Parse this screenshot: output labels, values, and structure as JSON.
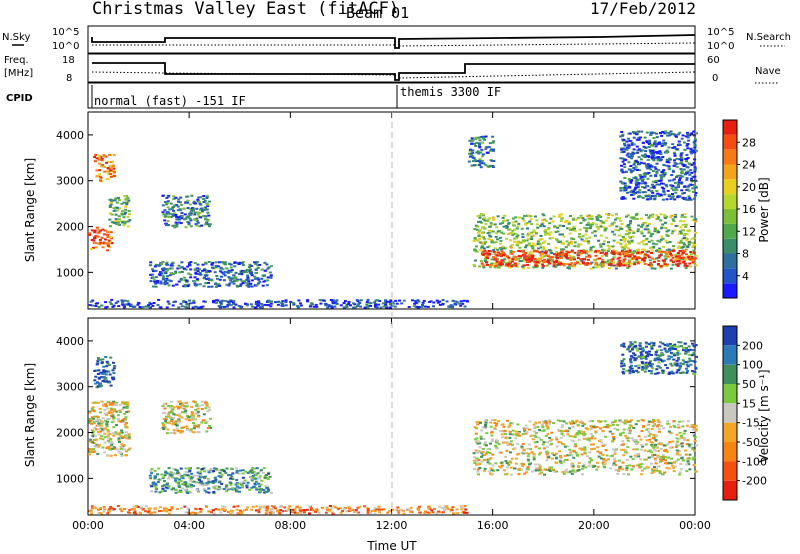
{
  "header": {
    "title": "Christmas Valley East (fitACF)",
    "beam": "Beam 01",
    "date": "17/Feb/2012"
  },
  "status_panel": {
    "nsky_label": "N.Sky",
    "nsky_tick_top": "10^5",
    "nsky_tick_bottom": "10^0",
    "nsearch_label": "N.Search",
    "nsearch_tick_top": "10^5",
    "nsearch_tick_bottom": "10^0",
    "freq_label_1": "Freq.",
    "freq_label_2": "[MHz]",
    "freq_tick_top": "18",
    "freq_tick_bottom": "8",
    "nave_label": "Nave",
    "nave_tick_top": "60",
    "nave_tick_bottom": "0",
    "cpid_label": "CPID",
    "cpid_1": "normal (fast) -151 IF",
    "cpid_2": "themis 3300 IF"
  },
  "chart_data": [
    {
      "type": "heatmap",
      "name": "power",
      "ylabel": "Slant Range [km]",
      "xlabel": "",
      "x_range_hours": [
        0,
        24
      ],
      "ylim": [
        200,
        4500
      ],
      "yticks": [
        "1000",
        "2000",
        "3000",
        "4000"
      ],
      "colorbar_label": "Power [dB]",
      "colorbar_ticks": [
        "4",
        "8",
        "12",
        "16",
        "20",
        "24",
        "28"
      ],
      "colorbar_colors": [
        "#1a1aff",
        "#2155c8",
        "#2f6fa0",
        "#3b8c6a",
        "#4fa84a",
        "#7cc03a",
        "#b6d630",
        "#e8d020",
        "#f3a41a",
        "#f77a16",
        "#f54c12",
        "#e81e10"
      ],
      "regions": [
        {
          "t": [
            0.0,
            0.9
          ],
          "r": [
            1500,
            2000
          ],
          "level": 0.85
        },
        {
          "t": [
            0.2,
            1.0
          ],
          "r": [
            3000,
            3600
          ],
          "level": 0.75
        },
        {
          "t": [
            0.8,
            1.6
          ],
          "r": [
            2000,
            2700
          ],
          "level": 0.4
        },
        {
          "t": [
            2.9,
            4.8
          ],
          "r": [
            2000,
            2700
          ],
          "level": 0.25
        },
        {
          "t": [
            2.4,
            7.2
          ],
          "r": [
            700,
            1250
          ],
          "level": 0.2
        },
        {
          "t": [
            0.0,
            15.0
          ],
          "r": [
            250,
            420
          ],
          "level": 0.1
        },
        {
          "t": [
            15.2,
            24.0
          ],
          "r": [
            1100,
            2300
          ],
          "level": 0.45
        },
        {
          "t": [
            15.5,
            24.0
          ],
          "r": [
            1150,
            1500
          ],
          "level": 0.95
        },
        {
          "t": [
            15.0,
            16.0
          ],
          "r": [
            3300,
            4000
          ],
          "level": 0.25
        },
        {
          "t": [
            21.0,
            24.0
          ],
          "r": [
            2600,
            4100
          ],
          "level": 0.15
        }
      ]
    },
    {
      "type": "heatmap",
      "name": "velocity",
      "ylabel": "Slant Range [km]",
      "xlabel": "Time UT",
      "x_range_hours": [
        0,
        24
      ],
      "xticks": [
        "00:00",
        "04:00",
        "08:00",
        "12:00",
        "16:00",
        "20:00",
        "00:00"
      ],
      "ylim": [
        200,
        4500
      ],
      "yticks": [
        "1000",
        "2000",
        "3000",
        "4000"
      ],
      "colorbar_label": "Velocity [m s⁻¹]",
      "colorbar_ticks": [
        "200",
        "100",
        "50",
        "15",
        "-15",
        "-50",
        "-100",
        "-200"
      ],
      "colorbar_colors": [
        "#1e3fb0",
        "#2a7ab8",
        "#3f8f5a",
        "#7cc940",
        "#c8c8c0",
        "#f3a62a",
        "#f78414",
        "#f55010",
        "#e81e10"
      ],
      "regions": [
        {
          "t": [
            0.0,
            1.6
          ],
          "r": [
            1500,
            2700
          ],
          "level": 0.5
        },
        {
          "t": [
            0.2,
            1.0
          ],
          "r": [
            3000,
            3700
          ],
          "level": 0.1
        },
        {
          "t": [
            2.9,
            4.8
          ],
          "r": [
            2000,
            2700
          ],
          "level": 0.5
        },
        {
          "t": [
            2.4,
            7.2
          ],
          "r": [
            700,
            1250
          ],
          "level": 0.3
        },
        {
          "t": [
            0.0,
            15.0
          ],
          "r": [
            250,
            420
          ],
          "level": 0.7
        },
        {
          "t": [
            15.2,
            24.0
          ],
          "r": [
            1100,
            2300
          ],
          "level": 0.5
        },
        {
          "t": [
            21.0,
            24.0
          ],
          "r": [
            3300,
            4000
          ],
          "level": 0.15
        }
      ]
    }
  ]
}
